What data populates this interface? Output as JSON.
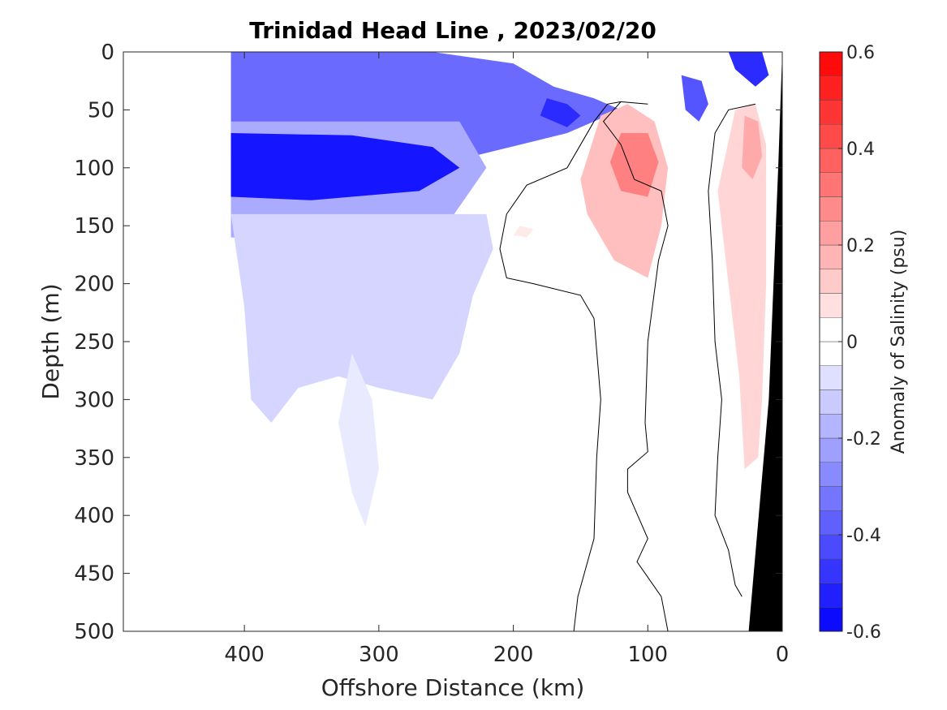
{
  "chart_data": {
    "type": "heatmap",
    "title": "Trinidad Head Line , 2023/02/20",
    "xlabel": "Offshore Distance (km)",
    "ylabel": "Depth (m)",
    "xlim": [
      490,
      0
    ],
    "ylim": [
      500,
      0
    ],
    "x_ticks": [
      400,
      300,
      200,
      100,
      0
    ],
    "x_tick_labels": [
      "400",
      "300",
      "200",
      "100",
      "0"
    ],
    "y_ticks": [
      0,
      50,
      100,
      150,
      200,
      250,
      300,
      350,
      400,
      450,
      500
    ],
    "y_tick_labels": [
      "0",
      "50",
      "100",
      "150",
      "200",
      "250",
      "300",
      "350",
      "400",
      "450",
      "500"
    ],
    "colorbar": {
      "label": "Anomaly of Salinity (psu)",
      "range": [
        -0.6,
        0.6
      ],
      "step": 0.05,
      "ticks": [
        0.6,
        0.4,
        0.2,
        0,
        -0.2,
        -0.4,
        -0.6
      ],
      "tick_labels": [
        "0.6",
        "0.4",
        "0.2",
        "0",
        "-0.2",
        "-0.4",
        "-0.6"
      ],
      "negative_color": "#0000ff",
      "positive_color": "#ff0000",
      "neutral_color": "#ffffff"
    },
    "features": [
      {
        "kind": "anomaly",
        "value": -0.35,
        "points": [
          [
            410,
            0
          ],
          [
            260,
            0
          ],
          [
            200,
            10
          ],
          [
            170,
            30
          ],
          [
            140,
            40
          ],
          [
            120,
            50
          ],
          [
            160,
            70
          ],
          [
            230,
            90
          ],
          [
            410,
            90
          ]
        ]
      },
      {
        "kind": "anomaly",
        "value": -0.2,
        "points": [
          [
            410,
            60
          ],
          [
            240,
            60
          ],
          [
            220,
            100
          ],
          [
            250,
            150
          ],
          [
            300,
            170
          ],
          [
            410,
            160
          ]
        ]
      },
      {
        "kind": "anomaly",
        "value": -0.55,
        "points": [
          [
            410,
            70
          ],
          [
            320,
            72
          ],
          [
            260,
            82
          ],
          [
            240,
            100
          ],
          [
            270,
            120
          ],
          [
            350,
            128
          ],
          [
            410,
            125
          ]
        ]
      },
      {
        "kind": "anomaly",
        "value": -0.5,
        "points": [
          [
            175,
            40
          ],
          [
            160,
            45
          ],
          [
            150,
            55
          ],
          [
            160,
            65
          ],
          [
            180,
            55
          ]
        ]
      },
      {
        "kind": "anomaly",
        "value": -0.4,
        "points": [
          [
            75,
            20
          ],
          [
            60,
            25
          ],
          [
            55,
            45
          ],
          [
            62,
            60
          ],
          [
            72,
            50
          ]
        ]
      },
      {
        "kind": "anomaly",
        "value": -0.5,
        "points": [
          [
            40,
            0
          ],
          [
            15,
            0
          ],
          [
            10,
            20
          ],
          [
            20,
            30
          ],
          [
            35,
            15
          ]
        ]
      },
      {
        "kind": "anomaly",
        "value": -0.1,
        "points": [
          [
            410,
            140
          ],
          [
            400,
            220
          ],
          [
            395,
            300
          ],
          [
            380,
            320
          ],
          [
            360,
            290
          ],
          [
            330,
            280
          ],
          [
            300,
            290
          ],
          [
            260,
            300
          ],
          [
            240,
            260
          ],
          [
            230,
            210
          ],
          [
            215,
            170
          ],
          [
            220,
            140
          ]
        ]
      },
      {
        "kind": "anomaly",
        "value": -0.05,
        "points": [
          [
            320,
            260
          ],
          [
            305,
            300
          ],
          [
            300,
            360
          ],
          [
            310,
            410
          ],
          [
            320,
            380
          ],
          [
            330,
            320
          ]
        ]
      },
      {
        "kind": "anomaly",
        "value": 0.15,
        "points": [
          [
            135,
            55
          ],
          [
            115,
            45
          ],
          [
            95,
            60
          ],
          [
            85,
            100
          ],
          [
            90,
            150
          ],
          [
            100,
            195
          ],
          [
            125,
            180
          ],
          [
            145,
            140
          ],
          [
            150,
            110
          ]
        ]
      },
      {
        "kind": "anomaly",
        "value": 0.3,
        "points": [
          [
            120,
            70
          ],
          [
            100,
            70
          ],
          [
            92,
            95
          ],
          [
            100,
            125
          ],
          [
            120,
            120
          ],
          [
            128,
            95
          ]
        ]
      },
      {
        "kind": "anomaly",
        "value": 0.1,
        "points": [
          [
            35,
            50
          ],
          [
            20,
            45
          ],
          [
            12,
            80
          ],
          [
            12,
            200
          ],
          [
            15,
            300
          ],
          [
            18,
            350
          ],
          [
            28,
            360
          ],
          [
            32,
            280
          ],
          [
            40,
            200
          ],
          [
            48,
            120
          ]
        ]
      },
      {
        "kind": "anomaly",
        "value": 0.2,
        "points": [
          [
            28,
            55
          ],
          [
            18,
            60
          ],
          [
            15,
            90
          ],
          [
            22,
            110
          ],
          [
            30,
            100
          ]
        ]
      },
      {
        "kind": "anomaly",
        "value": 0.05,
        "points": [
          [
            195,
            150
          ],
          [
            185,
            153
          ],
          [
            190,
            160
          ],
          [
            200,
            158
          ]
        ]
      }
    ],
    "zero_contours": [
      [
        [
          120,
          43
        ],
        [
          130,
          45
        ],
        [
          140,
          60
        ],
        [
          160,
          100
        ],
        [
          190,
          115
        ],
        [
          205,
          140
        ],
        [
          210,
          170
        ],
        [
          205,
          195
        ],
        [
          185,
          200
        ],
        [
          150,
          210
        ],
        [
          140,
          230
        ],
        [
          135,
          300
        ],
        [
          138,
          350
        ],
        [
          140,
          420
        ],
        [
          152,
          470
        ],
        [
          155,
          500
        ]
      ],
      [
        [
          100,
          45
        ],
        [
          120,
          43
        ],
        [
          133,
          60
        ],
        [
          120,
          80
        ],
        [
          110,
          110
        ],
        [
          90,
          120
        ],
        [
          85,
          150
        ],
        [
          92,
          180
        ],
        [
          100,
          250
        ],
        [
          102,
          320
        ],
        [
          100,
          345
        ],
        [
          115,
          360
        ],
        [
          115,
          380
        ],
        [
          100,
          420
        ],
        [
          108,
          440
        ],
        [
          90,
          470
        ],
        [
          85,
          500
        ]
      ],
      [
        [
          20,
          45
        ],
        [
          40,
          50
        ],
        [
          50,
          70
        ],
        [
          55,
          120
        ],
        [
          52,
          180
        ],
        [
          50,
          250
        ],
        [
          45,
          300
        ],
        [
          48,
          350
        ],
        [
          50,
          400
        ],
        [
          40,
          430
        ],
        [
          35,
          460
        ],
        [
          30,
          470
        ]
      ]
    ],
    "bathymetry_fill": "#000000",
    "bathymetry_points": [
      [
        0,
        0
      ],
      [
        0,
        500
      ],
      [
        25,
        500
      ],
      [
        10,
        300
      ],
      [
        3,
        100
      ]
    ]
  }
}
